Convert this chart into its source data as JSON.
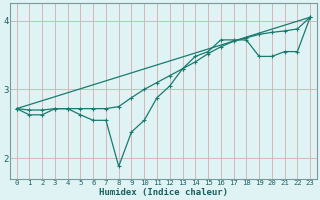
{
  "xlabel": "Humidex (Indice chaleur)",
  "ylabel": "",
  "bg_color": "#dff3f5",
  "line_color": "#1a7a6e",
  "grid_color": "#d4b8b8",
  "spine_color": "#7a9a9a",
  "tick_color": "#1a6060",
  "xlabel_color": "#1a6060",
  "xlim": [
    -0.5,
    23.5
  ],
  "ylim": [
    1.7,
    4.25
  ],
  "yticks": [
    2,
    3,
    4
  ],
  "xticks": [
    0,
    1,
    2,
    3,
    4,
    5,
    6,
    7,
    8,
    9,
    10,
    11,
    12,
    13,
    14,
    15,
    16,
    17,
    18,
    19,
    20,
    21,
    22,
    23
  ],
  "series1_x": [
    0,
    1,
    2,
    3,
    4,
    5,
    6,
    7,
    8,
    9,
    10,
    11,
    12,
    13,
    14,
    15,
    16,
    17,
    18,
    19,
    20,
    21,
    22,
    23
  ],
  "series1_y": [
    2.72,
    2.63,
    2.63,
    2.72,
    2.72,
    2.63,
    2.55,
    2.55,
    1.88,
    2.38,
    2.55,
    2.88,
    3.05,
    3.3,
    3.48,
    3.55,
    3.72,
    3.72,
    3.72,
    3.48,
    3.48,
    3.55,
    3.55,
    4.05
  ],
  "series2_x": [
    0,
    1,
    2,
    3,
    4,
    5,
    6,
    7,
    8,
    9,
    10,
    11,
    12,
    13,
    14,
    15,
    16,
    17,
    18,
    19,
    20,
    21,
    22,
    23
  ],
  "series2_y": [
    2.72,
    2.7,
    2.7,
    2.72,
    2.72,
    2.72,
    2.72,
    2.72,
    2.75,
    2.88,
    3.0,
    3.1,
    3.2,
    3.3,
    3.4,
    3.52,
    3.62,
    3.7,
    3.75,
    3.8,
    3.83,
    3.85,
    3.88,
    4.05
  ],
  "series3_x": [
    0,
    23
  ],
  "series3_y": [
    2.72,
    4.05
  ]
}
